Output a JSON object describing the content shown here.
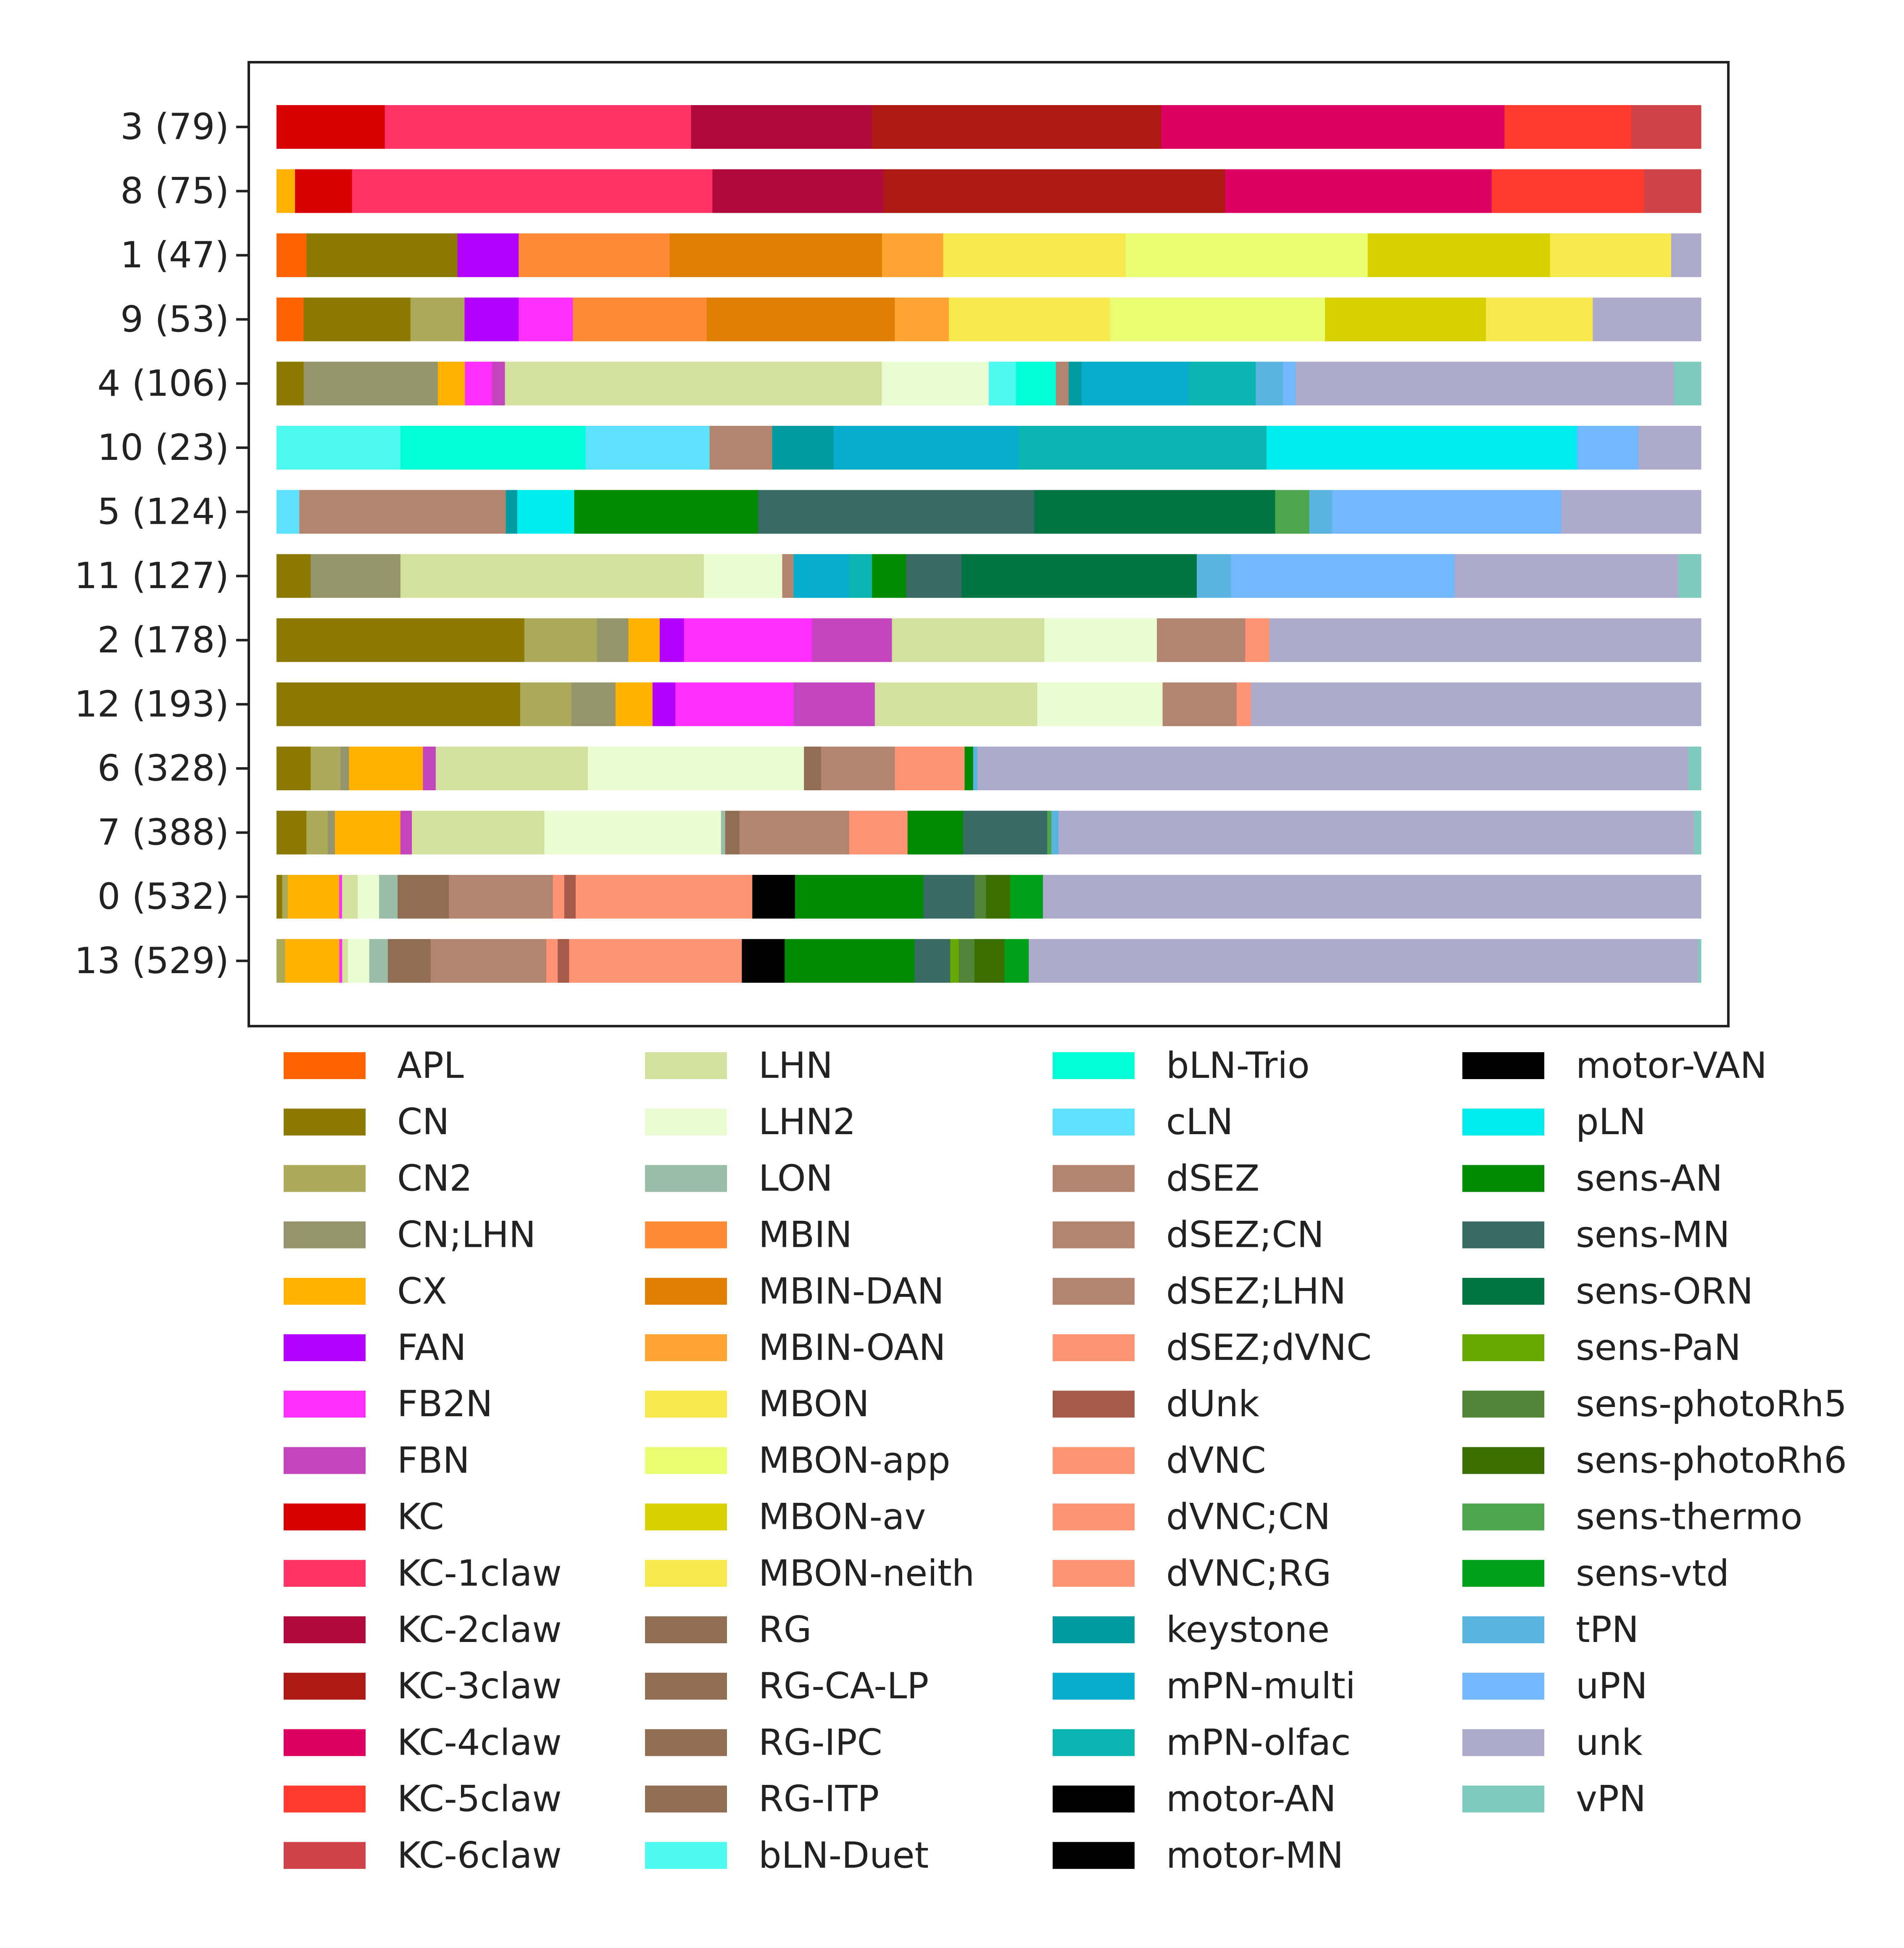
{
  "chart_data": {
    "type": "bar",
    "orientation": "horizontal",
    "stacked": true,
    "normalized": true,
    "title": "",
    "xlabel": "",
    "ylabel": "",
    "xlim": [
      0,
      1
    ],
    "grid": false,
    "legend_position": "bottom",
    "categories": [
      "3 (79)",
      "8 (75)",
      "1 (47)",
      "9 (53)",
      "4 (106)",
      "10 (23)",
      "5 (124)",
      "11 (127)",
      "2 (178)",
      "12 (193)",
      "6 (328)",
      "7 (388)",
      "0 (532)",
      "13 (529)"
    ],
    "legend": [
      {
        "name": "APL",
        "color": "#ff6200"
      },
      {
        "name": "CN",
        "color": "#8c7a00"
      },
      {
        "name": "CN2",
        "color": "#ada95a"
      },
      {
        "name": "CN;LHN",
        "color": "#96946a"
      },
      {
        "name": "CX",
        "color": "#ffb300"
      },
      {
        "name": "FAN",
        "color": "#b300ff"
      },
      {
        "name": "FB2N",
        "color": "#ff2eff"
      },
      {
        "name": "FBN",
        "color": "#c245bd"
      },
      {
        "name": "KC",
        "color": "#d90000"
      },
      {
        "name": "KC-1claw",
        "color": "#ff3366"
      },
      {
        "name": "KC-2claw",
        "color": "#b00a3c"
      },
      {
        "name": "KC-3claw",
        "color": "#ad1a14"
      },
      {
        "name": "KC-4claw",
        "color": "#db0061"
      },
      {
        "name": "KC-5claw",
        "color": "#ff3a2e"
      },
      {
        "name": "KC-6claw",
        "color": "#cf4248"
      },
      {
        "name": "LHN",
        "color": "#d4e09e"
      },
      {
        "name": "LHN2",
        "color": "#eafcd1"
      },
      {
        "name": "LON",
        "color": "#99bda6"
      },
      {
        "name": "MBIN",
        "color": "#ff8a36"
      },
      {
        "name": "MBIN-DAN",
        "color": "#de7f04"
      },
      {
        "name": "MBIN-OAN",
        "color": "#ffa433"
      },
      {
        "name": "MBON",
        "color": "#f7e94d"
      },
      {
        "name": "MBON-app",
        "color": "#e9fc72"
      },
      {
        "name": "MBON-av",
        "color": "#d9d000"
      },
      {
        "name": "MBON-neith",
        "color": "#f7e94d"
      },
      {
        "name": "RG",
        "color": "#8f6e54"
      },
      {
        "name": "RG-CA-LP",
        "color": "#8f6e54"
      },
      {
        "name": "RG-IPC",
        "color": "#8f6e54"
      },
      {
        "name": "RG-ITP",
        "color": "#8f6e54"
      },
      {
        "name": "bLN-Duet",
        "color": "#4dfaf0"
      },
      {
        "name": "bLN-Trio",
        "color": "#00ffd5"
      },
      {
        "name": "cLN",
        "color": "#5ce1ff"
      },
      {
        "name": "dSEZ",
        "color": "#b38570"
      },
      {
        "name": "dSEZ;CN",
        "color": "#b38570"
      },
      {
        "name": "dSEZ;LHN",
        "color": "#b38570"
      },
      {
        "name": "dSEZ;dVNC",
        "color": "#ff9475"
      },
      {
        "name": "dUnk",
        "color": "#a65a4a"
      },
      {
        "name": "dVNC",
        "color": "#ff9475"
      },
      {
        "name": "dVNC;CN",
        "color": "#ff9475"
      },
      {
        "name": "dVNC;RG",
        "color": "#ff9475"
      },
      {
        "name": "keystone",
        "color": "#009ba1"
      },
      {
        "name": "mPN-multi",
        "color": "#06adcc"
      },
      {
        "name": "mPN-olfac",
        "color": "#0ab4b0"
      },
      {
        "name": "motor-AN",
        "color": "#000000"
      },
      {
        "name": "motor-MN",
        "color": "#000000"
      },
      {
        "name": "motor-VAN",
        "color": "#000000"
      },
      {
        "name": "pLN",
        "color": "#00ebed"
      },
      {
        "name": "sens-AN",
        "color": "#008a00"
      },
      {
        "name": "sens-MN",
        "color": "#376b63"
      },
      {
        "name": "sens-ORN",
        "color": "#007542"
      },
      {
        "name": "sens-PaN",
        "color": "#66a800"
      },
      {
        "name": "sens-photoRh5",
        "color": "#528538"
      },
      {
        "name": "sens-photoRh6",
        "color": "#3b7000"
      },
      {
        "name": "sens-thermo",
        "color": "#4da64d"
      },
      {
        "name": "sens-vtd",
        "color": "#00a11a"
      },
      {
        "name": "tPN",
        "color": "#5ab4e0"
      },
      {
        "name": "uPN",
        "color": "#73b8ff"
      },
      {
        "name": "unk",
        "color": "#adaacb"
      },
      {
        "name": "vPN",
        "color": "#7ecbbd"
      }
    ],
    "stacks": [
      [
        [
          "KC",
          0.076
        ],
        [
          "KC-1claw",
          0.215
        ],
        [
          "KC-2claw",
          0.127
        ],
        [
          "KC-3claw",
          0.203
        ],
        [
          "KC-4claw",
          0.241
        ],
        [
          "KC-5claw",
          0.089
        ],
        [
          "KC-6claw",
          0.049
        ]
      ],
      [
        [
          "CX",
          0.013
        ],
        [
          "KC",
          0.04
        ],
        [
          "KC-1claw",
          0.253
        ],
        [
          "KC-2claw",
          0.12
        ],
        [
          "KC-3claw",
          0.24
        ],
        [
          "KC-4claw",
          0.187
        ],
        [
          "KC-5claw",
          0.107
        ],
        [
          "KC-6claw",
          0.04
        ]
      ],
      [
        [
          "APL",
          0.021
        ],
        [
          "CN",
          0.106
        ],
        [
          "FAN",
          0.043
        ],
        [
          "MBIN",
          0.106
        ],
        [
          "MBIN-DAN",
          0.149
        ],
        [
          "MBIN-OAN",
          0.043
        ],
        [
          "MBON",
          0.128
        ],
        [
          "MBON-app",
          0.17
        ],
        [
          "MBON-av",
          0.128
        ],
        [
          "MBON-neith",
          0.085
        ],
        [
          "unk",
          0.021
        ]
      ],
      [
        [
          "APL",
          0.019
        ],
        [
          "CN",
          0.075
        ],
        [
          "CN2",
          0.038
        ],
        [
          "FAN",
          0.038
        ],
        [
          "FB2N",
          0.038
        ],
        [
          "MBIN",
          0.094
        ],
        [
          "MBIN-DAN",
          0.132
        ],
        [
          "MBIN-OAN",
          0.038
        ],
        [
          "MBON",
          0.113
        ],
        [
          "MBON-app",
          0.151
        ],
        [
          "MBON-av",
          0.113
        ],
        [
          "MBON-neith",
          0.075
        ],
        [
          "unk",
          0.076
        ]
      ],
      [
        [
          "CN",
          0.019
        ],
        [
          "CN;LHN",
          0.094
        ],
        [
          "CX",
          0.019
        ],
        [
          "FB2N",
          0.019
        ],
        [
          "FBN",
          0.009
        ],
        [
          "LHN",
          0.264
        ],
        [
          "LHN2",
          0.075
        ],
        [
          "bLN-Duet",
          0.019
        ],
        [
          "bLN-Trio",
          0.028
        ],
        [
          "dSEZ",
          0.009
        ],
        [
          "keystone",
          0.009
        ],
        [
          "mPN-multi",
          0.075
        ],
        [
          "mPN-olfac",
          0.047
        ],
        [
          "tPN",
          0.019
        ],
        [
          "uPN",
          0.009
        ],
        [
          "unk",
          0.265
        ],
        [
          "vPN",
          0.019
        ]
      ],
      [
        [
          "bLN-Duet",
          0.087
        ],
        [
          "bLN-Trio",
          0.13
        ],
        [
          "cLN",
          0.087
        ],
        [
          "dSEZ",
          0.044
        ],
        [
          "keystone",
          0.043
        ],
        [
          "mPN-multi",
          0.13
        ],
        [
          "mPN-olfac",
          0.174
        ],
        [
          "pLN",
          0.218
        ],
        [
          "uPN",
          0.043
        ],
        [
          "unk",
          0.044
        ]
      ],
      [
        [
          "cLN",
          0.016
        ],
        [
          "dSEZ",
          0.145
        ],
        [
          "keystone",
          0.008
        ],
        [
          "pLN",
          0.04
        ],
        [
          "sens-AN",
          0.129
        ],
        [
          "sens-MN",
          0.194
        ],
        [
          "sens-ORN",
          0.169
        ],
        [
          "sens-thermo",
          0.024
        ],
        [
          "tPN",
          0.016
        ],
        [
          "uPN",
          0.161
        ],
        [
          "unk",
          0.098
        ]
      ],
      [
        [
          "CN",
          0.024
        ],
        [
          "CN;LHN",
          0.063
        ],
        [
          "LHN",
          0.213
        ],
        [
          "LHN2",
          0.055
        ],
        [
          "dSEZ",
          0.008
        ],
        [
          "mPN-multi",
          0.039
        ],
        [
          "mPN-olfac",
          0.016
        ],
        [
          "sens-AN",
          0.024
        ],
        [
          "sens-MN",
          0.039
        ],
        [
          "sens-ORN",
          0.165
        ],
        [
          "tPN",
          0.024
        ],
        [
          "uPN",
          0.157
        ],
        [
          "unk",
          0.157
        ],
        [
          "vPN",
          0.016
        ]
      ],
      [
        [
          "CN",
          0.174
        ],
        [
          "CN2",
          0.051
        ],
        [
          "CN;LHN",
          0.022
        ],
        [
          "CX",
          0.022
        ],
        [
          "FAN",
          0.017
        ],
        [
          "FB2N",
          0.09
        ],
        [
          "FBN",
          0.056
        ],
        [
          "LHN",
          0.107
        ],
        [
          "LHN2",
          0.079
        ],
        [
          "dSEZ",
          0.062
        ],
        [
          "dSEZ;dVNC",
          0.017
        ],
        [
          "unk",
          0.303
        ]
      ],
      [
        [
          "CN",
          0.171
        ],
        [
          "CN2",
          0.036
        ],
        [
          "CN;LHN",
          0.031
        ],
        [
          "CX",
          0.026
        ],
        [
          "FAN",
          0.016
        ],
        [
          "FB2N",
          0.083
        ],
        [
          "FBN",
          0.057
        ],
        [
          "LHN",
          0.114
        ],
        [
          "LHN2",
          0.088
        ],
        [
          "dSEZ",
          0.052
        ],
        [
          "dSEZ;dVNC",
          0.01
        ],
        [
          "unk",
          0.316
        ]
      ],
      [
        [
          "CN",
          0.024
        ],
        [
          "CN2",
          0.021
        ],
        [
          "CN;LHN",
          0.006
        ],
        [
          "CX",
          0.052
        ],
        [
          "FBN",
          0.009
        ],
        [
          "LHN",
          0.107
        ],
        [
          "LHN2",
          0.152
        ],
        [
          "RG",
          0.012
        ],
        [
          "dSEZ",
          0.052
        ],
        [
          "dSEZ;dVNC",
          0.049
        ],
        [
          "sens-AN",
          0.006
        ],
        [
          "tPN",
          0.003
        ],
        [
          "unk",
          0.5
        ],
        [
          "vPN",
          0.009
        ]
      ],
      [
        [
          "CN",
          0.021
        ],
        [
          "CN2",
          0.015
        ],
        [
          "CN;LHN",
          0.005
        ],
        [
          "CX",
          0.046
        ],
        [
          "FBN",
          0.008
        ],
        [
          "LHN",
          0.093
        ],
        [
          "LHN2",
          0.124
        ],
        [
          "LON",
          0.003
        ],
        [
          "RG",
          0.01
        ],
        [
          "dSEZ",
          0.077
        ],
        [
          "dSEZ;dVNC",
          0.041
        ],
        [
          "sens-AN",
          0.039
        ],
        [
          "sens-MN",
          0.059
        ],
        [
          "sens-thermo",
          0.003
        ],
        [
          "tPN",
          0.005
        ],
        [
          "unk",
          0.446
        ],
        [
          "vPN",
          0.005
        ]
      ],
      [
        [
          "CN",
          0.004
        ],
        [
          "CN2",
          0.004
        ],
        [
          "CX",
          0.036
        ],
        [
          "FB2N",
          0.002
        ],
        [
          "LHN",
          0.011
        ],
        [
          "LHN2",
          0.015
        ],
        [
          "LON",
          0.013
        ],
        [
          "RG",
          0.036
        ],
        [
          "dSEZ",
          0.073
        ],
        [
          "dSEZ;dVNC",
          0.008
        ],
        [
          "dUnk",
          0.008
        ],
        [
          "dVNC",
          0.124
        ],
        [
          "motor-AN",
          0.03
        ],
        [
          "sens-AN",
          0.09
        ],
        [
          "sens-MN",
          0.036
        ],
        [
          "sens-photoRh5",
          0.008
        ],
        [
          "sens-photoRh6",
          0.017
        ],
        [
          "sens-vtd",
          0.023
        ],
        [
          "unk",
          0.462
        ]
      ],
      [
        [
          "CN2",
          0.006
        ],
        [
          "CX",
          0.038
        ],
        [
          "FB2N",
          0.002
        ],
        [
          "LHN",
          0.004
        ],
        [
          "LHN2",
          0.015
        ],
        [
          "LON",
          0.013
        ],
        [
          "RG",
          0.03
        ],
        [
          "dSEZ",
          0.081
        ],
        [
          "dSEZ;dVNC",
          0.008
        ],
        [
          "dUnk",
          0.008
        ],
        [
          "dVNC",
          0.121
        ],
        [
          "motor-AN",
          0.03
        ],
        [
          "sens-AN",
          0.091
        ],
        [
          "sens-MN",
          0.025
        ],
        [
          "sens-PaN",
          0.006
        ],
        [
          "sens-photoRh5",
          0.011
        ],
        [
          "sens-photoRh6",
          0.021
        ],
        [
          "sens-vtd",
          0.017
        ],
        [
          "unk",
          0.469
        ],
        [
          "vPN",
          0.002
        ]
      ]
    ]
  }
}
